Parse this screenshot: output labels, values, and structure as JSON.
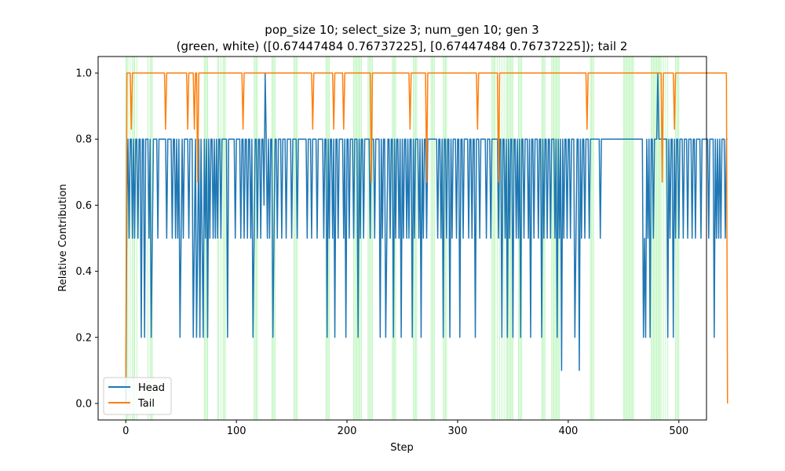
{
  "chart_data": {
    "type": "line",
    "title_line1": "pop_size 10; select_size 3; num_gen 10; gen 3",
    "title_line2": "(green, white) ([0.67447484 0.76737225], [0.67447484 0.76737225]); tail 2",
    "xlabel": "Step",
    "ylabel": "Relative Contribution",
    "xlim": [
      -25,
      525
    ],
    "ylim": [
      -0.05,
      1.05
    ],
    "xticks": [
      0,
      100,
      200,
      300,
      400,
      500
    ],
    "yticks": [
      0.0,
      0.2,
      0.4,
      0.6,
      0.8,
      1.0
    ],
    "grid": false,
    "legend_position": "lower-left",
    "shaded_color": "#90ee90",
    "shaded_steps": [
      0,
      1,
      2,
      4,
      6,
      7,
      8,
      10,
      20,
      22,
      23,
      24,
      71,
      72,
      73,
      74,
      83,
      84,
      86,
      88,
      89,
      90,
      116,
      117,
      118,
      119,
      132,
      133,
      134,
      135,
      152,
      153,
      154,
      155,
      181,
      182,
      183,
      184,
      206,
      207,
      208,
      209,
      210,
      211,
      212,
      213,
      219,
      220,
      221,
      222,
      223,
      241,
      242,
      243,
      244,
      260,
      261,
      262,
      263,
      276,
      277,
      278,
      279,
      287,
      288,
      289,
      290,
      331,
      332,
      333,
      334,
      336,
      338,
      340,
      342,
      344,
      345,
      346,
      347,
      348,
      349,
      350,
      355,
      356,
      357,
      358,
      376,
      377,
      378,
      379,
      385,
      386,
      387,
      388,
      389,
      390,
      391,
      392,
      420,
      421,
      422,
      423,
      450,
      451,
      452,
      453,
      454,
      455,
      456,
      457,
      458,
      459,
      475,
      476,
      477,
      478,
      479,
      480,
      481,
      482,
      483,
      484,
      486,
      488,
      490,
      497,
      498,
      499,
      500
    ],
    "series": [
      {
        "name": "Head",
        "color": "#1f77b4",
        "values": [
          0.0,
          0.6,
          0.8,
          0.5,
          0.8,
          0.8,
          0.5,
          0.8,
          0.5,
          0.8,
          0.8,
          0.5,
          0.8,
          0.8,
          0.2,
          0.8,
          0.8,
          0.2,
          0.8,
          0.8,
          0.8,
          0.5,
          0.8,
          0.2,
          0.5,
          0.8,
          0.8,
          0.8,
          0.8,
          0.5,
          0.8,
          0.8,
          0.8,
          0.8,
          0.8,
          0.8,
          0.8,
          0.5,
          0.8,
          0.8,
          0.8,
          0.8,
          0.5,
          0.8,
          0.8,
          0.5,
          0.8,
          0.5,
          0.8,
          0.2,
          0.5,
          0.8,
          0.5,
          0.8,
          0.8,
          0.8,
          0.8,
          0.5,
          0.8,
          0.8,
          0.8,
          0.2,
          0.5,
          0.8,
          0.2,
          0.5,
          0.8,
          0.2,
          0.8,
          0.5,
          0.2,
          0.8,
          0.5,
          0.8,
          0.2,
          0.8,
          0.5,
          0.8,
          0.8,
          0.5,
          0.8,
          0.5,
          0.8,
          0.5,
          0.8,
          0.8,
          0.5,
          0.8,
          0.8,
          0.8,
          0.8,
          0.8,
          0.2,
          0.8,
          0.8,
          0.8,
          0.8,
          0.8,
          0.8,
          0.5,
          0.8,
          0.8,
          0.8,
          0.8,
          0.5,
          0.8,
          0.8,
          0.5,
          0.8,
          0.8,
          0.5,
          0.8,
          0.8,
          0.5,
          0.8,
          0.2,
          0.5,
          0.8,
          0.8,
          0.5,
          0.8,
          0.8,
          0.5,
          0.8,
          0.8,
          0.6,
          1.0,
          0.8,
          0.5,
          0.8,
          0.5,
          0.8,
          0.8,
          0.2,
          0.5,
          0.8,
          0.8,
          0.5,
          0.8,
          0.8,
          0.8,
          0.5,
          0.8,
          0.8,
          0.8,
          0.5,
          0.8,
          0.8,
          0.8,
          0.8,
          0.5,
          0.8,
          0.8,
          0.8,
          0.8,
          0.5,
          0.8,
          0.8,
          0.8,
          0.8,
          0.8,
          0.8,
          0.8,
          0.8,
          0.5,
          0.8,
          0.8,
          0.8,
          0.5,
          0.8,
          0.8,
          0.8,
          0.8,
          0.5,
          0.8,
          0.8,
          0.8,
          0.8,
          0.8,
          0.5,
          0.8,
          0.8,
          0.2,
          0.8,
          0.5,
          0.8,
          0.8,
          0.5,
          0.8,
          0.2,
          0.8,
          0.8,
          0.5,
          0.8,
          0.8,
          0.8,
          0.8,
          0.5,
          0.8,
          0.2,
          0.8,
          0.8,
          0.5,
          0.8,
          0.8,
          0.8,
          0.5,
          0.8,
          0.8,
          0.8,
          0.2,
          0.8,
          0.5,
          0.8,
          0.8,
          0.5,
          0.8,
          0.8,
          0.8,
          0.8,
          0.8,
          0.5,
          0.8,
          0.8,
          0.8,
          0.5,
          0.8,
          0.8,
          0.8,
          0.8,
          0.2,
          0.8,
          0.5,
          0.8,
          0.8,
          0.2,
          0.5,
          0.8,
          0.8,
          0.5,
          0.8,
          0.8,
          0.2,
          0.8,
          0.5,
          0.8,
          0.8,
          0.5,
          0.8,
          0.2,
          0.8,
          0.5,
          0.8,
          0.8,
          0.5,
          0.8,
          0.5,
          0.8,
          0.8,
          0.2,
          0.8,
          0.5,
          0.8,
          0.8,
          0.8,
          0.5,
          0.8,
          0.2,
          0.8,
          0.5,
          0.8,
          0.8,
          0.5,
          0.8,
          0.8,
          0.8,
          0.8,
          0.8,
          0.8,
          0.8,
          0.8,
          0.8,
          0.5,
          0.8,
          0.8,
          0.5,
          0.8,
          0.2,
          0.8,
          0.8,
          0.5,
          0.8,
          0.8,
          0.2,
          0.8,
          0.5,
          0.8,
          0.8,
          0.8,
          0.5,
          0.8,
          0.8,
          0.2,
          0.8,
          0.8,
          0.5,
          0.8,
          0.8,
          0.8,
          0.8,
          0.5,
          0.8,
          0.8,
          0.5,
          0.8,
          0.8,
          0.2,
          0.8,
          0.8,
          0.8,
          0.5,
          0.8,
          0.8,
          0.8,
          0.8,
          0.8,
          0.5,
          0.8,
          0.8,
          0.8,
          0.5,
          0.8,
          0.8,
          0.8,
          0.8,
          0.8,
          0.8,
          0.5,
          0.8,
          0.8,
          0.2,
          0.8,
          0.8,
          0.5,
          0.8,
          0.2,
          0.8,
          0.5,
          0.8,
          0.8,
          0.2,
          0.8,
          0.8,
          0.5,
          0.8,
          0.5,
          0.8,
          0.2,
          0.8,
          0.8,
          0.5,
          0.8,
          0.8,
          0.8,
          0.5,
          0.8,
          0.2,
          0.8,
          0.8,
          0.5,
          0.8,
          0.8,
          0.8,
          0.5,
          0.8,
          0.8,
          0.2,
          0.8,
          0.5,
          0.8,
          0.8,
          0.5,
          0.8,
          0.8,
          0.5,
          0.8,
          0.8,
          0.8,
          0.5,
          0.8,
          0.2,
          0.8,
          0.5,
          0.8,
          0.1,
          0.8,
          0.5,
          0.8,
          0.8,
          0.5,
          0.8,
          0.8,
          0.5,
          0.8,
          0.8,
          0.8,
          0.2,
          0.5,
          0.8,
          0.8,
          0.1,
          0.8,
          0.5,
          0.8,
          0.8,
          0.5,
          0.8,
          0.8,
          0.8,
          0.5,
          0.8,
          0.8,
          0.8,
          0.8,
          0.8,
          0.8,
          0.8,
          0.8,
          0.8,
          0.5,
          0.8,
          0.8,
          0.8,
          0.8,
          0.8,
          0.8,
          0.8,
          0.8,
          0.8,
          0.8,
          0.8,
          0.8,
          0.8,
          0.8,
          0.8,
          0.8,
          0.8,
          0.8,
          0.8,
          0.8,
          0.8,
          0.8,
          0.8,
          0.8,
          0.8,
          0.8,
          0.8,
          0.8,
          0.8,
          0.8,
          0.8,
          0.8,
          0.8,
          0.8,
          0.8,
          0.8,
          0.8,
          0.8,
          0.2,
          0.5,
          0.2,
          0.8,
          0.5,
          0.8,
          0.2,
          0.8,
          0.8,
          0.5,
          0.8,
          0.8,
          0.8,
          1.0,
          0.8,
          0.8,
          0.8,
          0.8,
          0.8,
          0.8,
          0.8,
          0.8,
          0.2,
          0.8,
          0.5,
          0.8,
          0.8,
          0.2,
          0.8,
          0.5,
          0.8,
          0.8,
          0.5,
          0.8,
          0.8,
          0.8,
          0.5,
          0.8,
          0.8,
          0.8,
          0.5,
          0.8,
          0.8,
          0.8,
          0.5,
          0.8,
          0.8,
          0.5,
          0.8,
          0.8,
          0.8,
          0.8,
          0.5,
          0.8,
          0.8,
          0.8,
          0.8,
          0.8,
          0.8,
          0.5,
          0.8,
          0.8,
          0.8,
          0.8,
          0.2,
          0.8,
          0.5,
          0.8,
          0.5,
          0.8,
          0.5,
          0.8,
          0.8,
          0.8,
          0.5,
          0.8,
          0.8
        ]
      },
      {
        "name": "Tail",
        "color": "#ff7f0e",
        "sparse": true,
        "default": 1.0,
        "first": 0.07,
        "last": 0.0,
        "overrides": [
          [
            5,
            0.83
          ],
          [
            36,
            0.83
          ],
          [
            56,
            0.83
          ],
          [
            62,
            0.83
          ],
          [
            65,
            0.67
          ],
          [
            106,
            0.83
          ],
          [
            169,
            0.83
          ],
          [
            188,
            0.83
          ],
          [
            197,
            0.83
          ],
          [
            222,
            0.67
          ],
          [
            257,
            0.83
          ],
          [
            272,
            0.67
          ],
          [
            318,
            0.83
          ],
          [
            337,
            0.67
          ],
          [
            417,
            0.83
          ],
          [
            485,
            0.67
          ],
          [
            496,
            0.83
          ]
        ]
      }
    ]
  }
}
